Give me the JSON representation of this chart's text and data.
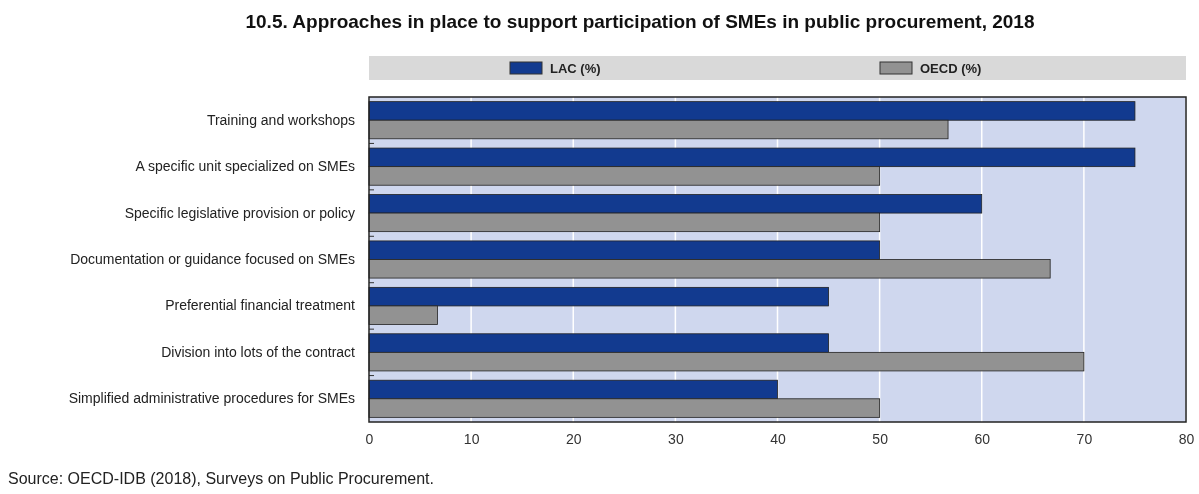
{
  "chart_data": {
    "type": "bar",
    "orientation": "horizontal",
    "title": "10.5. Approaches in place to support participation of SMEs in public procurement, 2018",
    "categories": [
      "Training and workshops",
      "A specific unit specialized on SMEs",
      "Specific legislative provision or policy",
      "Documentation or guidance focused on SMEs",
      "Preferential financial treatment",
      "Division into lots of the contract",
      "Simplified administrative procedures for SMEs"
    ],
    "series": [
      {
        "name": "LAC (%)",
        "color": "#123a8f",
        "values": [
          75,
          75,
          60,
          50,
          45,
          45,
          40
        ]
      },
      {
        "name": "OECD (%)",
        "color": "#929292",
        "values": [
          56.7,
          50,
          50,
          66.7,
          6.7,
          70,
          50
        ]
      }
    ],
    "xlim": [
      0,
      80
    ],
    "xticks": [
      0,
      10,
      20,
      30,
      40,
      50,
      60,
      70,
      80
    ],
    "grid": "x",
    "legend": "top",
    "annotations": [
      "Source: OECD-IDB (2018), Surveys on Public Procurement."
    ]
  }
}
